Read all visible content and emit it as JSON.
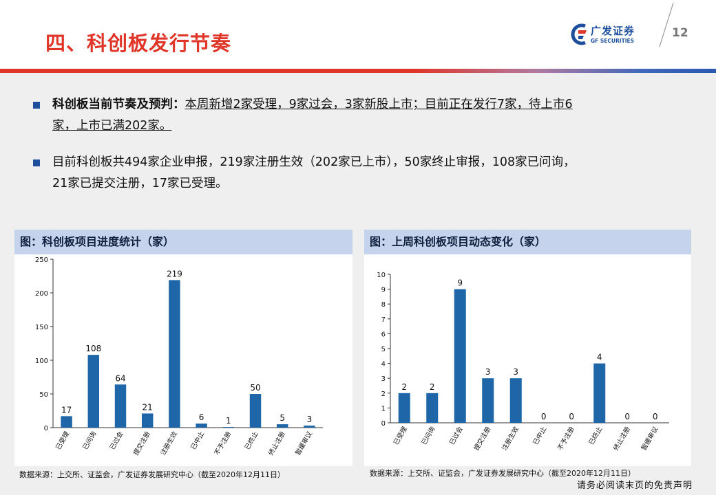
{
  "page": {
    "title": "四、科创板发行节奏",
    "number": "12",
    "logo_cn": "广发证券",
    "logo_en": "GF SECURITIES",
    "disclaimer": "请务必阅读末页的免责声明",
    "colors": {
      "accent_red": "#e0362a",
      "brand_blue": "#1f4e9c",
      "bar_blue": "#1f66a8",
      "panel_header": "#c6d3ec"
    }
  },
  "bullets": [
    {
      "bold": "科创板当前节奏及预判：",
      "underlined": "本周新增2家受理，9家过会，3家新股上市；目前正在发行7家，待上市6",
      "underlined_cont": "家，上市已满202家。"
    },
    {
      "line1": "目前科创板共494家企业申报，219家注册生效（202家已上市），50家终止审报，108家已问询，",
      "line2": "21家已提交注册，17家已受理。"
    }
  ],
  "panels": [
    {
      "header": "图：科创板项目进度统计（家）",
      "source": "数据来源：上交所、证监会，广发证券发展研究中心（截至2020年12月11日）"
    },
    {
      "header": "图：上周科创板项目动态变化（家）",
      "source": "数据来源：上交所、证监会，广发证券发展研究中心（截至2020年12月11日）"
    }
  ],
  "chart_data": [
    {
      "type": "bar",
      "categories": [
        "已受理",
        "已问询",
        "已过会",
        "提交注册",
        "注册生效",
        "已中止",
        "不予注册",
        "已终止",
        "终止注册",
        "暂缓审议"
      ],
      "values": [
        17,
        108,
        64,
        21,
        219,
        6,
        1,
        50,
        5,
        3
      ],
      "ylim": [
        0,
        250
      ],
      "yticks": [
        0,
        50,
        100,
        150,
        200,
        250
      ],
      "data_labels": true,
      "grid": false
    },
    {
      "type": "bar",
      "categories": [
        "已受理",
        "已问询",
        "已过会",
        "提交注册",
        "注册生效",
        "已中止",
        "不予注册",
        "已终止",
        "终止注册",
        "暂缓审议"
      ],
      "values": [
        2,
        2,
        9,
        3,
        3,
        0,
        0,
        4,
        0,
        0
      ],
      "ylim": [
        0,
        10
      ],
      "yticks": [
        0,
        1,
        2,
        3,
        4,
        5,
        6,
        7,
        8,
        9,
        10
      ],
      "data_labels": true,
      "grid": false
    }
  ]
}
